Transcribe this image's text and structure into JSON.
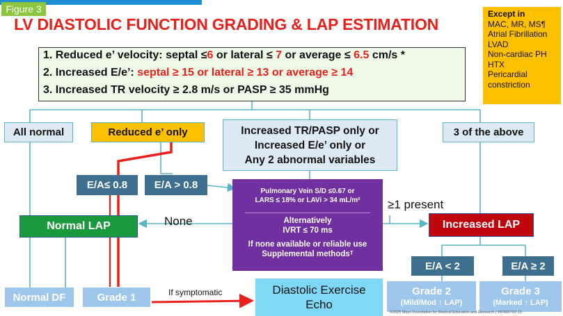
{
  "figure_label": "Figure 3",
  "title": "LV DIASTOLIC FUNCTION GRADING & LAP ESTIMATION",
  "exceptions": {
    "heading": "Except in",
    "items": [
      "MAC, MR, MS¶",
      "Atrial Fibrillation",
      "LVAD",
      "Non-cardiac PH",
      "HTX",
      "Pericardial",
      "constriction"
    ]
  },
  "criteria": {
    "c1": {
      "pre": "1. Reduced e’ velocity:  septal ≤",
      "v1": "6",
      "mid1": "  or lateral ≤ ",
      "v2": "7",
      "mid2": " or ",
      "mid3": "average ≤ ",
      "v3": "6.5",
      "post": " cm/s *"
    },
    "c2": {
      "pre": "2. Increased E/e’: ",
      "rest": "septal ≥ 15 or lateral ≥ 13 or average ≥ 14"
    },
    "c3": "3. Increased TR velocity ≥ 2.8 m/s or PASP ≥ 35 mmHg"
  },
  "branches": {
    "all_normal": "All normal",
    "reduced_e": "Reduced e’ only",
    "increased_tr": [
      "Increased TR/PASP only or",
      "Increased E/e’ only or",
      "Any 2 abnormal variables"
    ],
    "three_above": "3 of the above"
  },
  "ea_low": "E/A≤ 0.8",
  "ea_high": "E/A > 0.8",
  "purple": {
    "line1": "Pulmonary Vein S/D ≤0.67 or",
    "line2": "LARS ≤ 18% or LAVi > 34 mL/m²",
    "alt": "Alternatively",
    "ivrt": "IVRT  ≤ 70 ms",
    "none1": "If none available or reliable use",
    "none2": "Supplemental methodsᵀ"
  },
  "none_label": "None",
  "present_label": "≥1 present",
  "normal_lap": "Normal LAP",
  "increased_lap": "Increased LAP",
  "ea_lt2": "E/A <  2",
  "ea_ge2": "E/A ≥ 2",
  "normal_df": "Normal DF",
  "grade1": "Grade 1",
  "if_symptomatic": "If symptomatic",
  "exercise_echo": [
    "Diastolic Exercise",
    "Echo"
  ],
  "grade2": {
    "title": "Grade 2",
    "sub": "(Mild/Mod ↑ LAP)"
  },
  "grade3": {
    "title": "Grade 3",
    "sub": "(Marked ↑ LAP)"
  },
  "footer": "©2025 Mayo Foundation for Medical Education and Research  |  WF880702-15",
  "colors": {
    "teal_border": "#5ab4c6",
    "steel": "#3f6f8f",
    "green": "#1a9a3c",
    "red_box": "#c0070d",
    "purple": "#7030a0",
    "orange": "#ffc000",
    "light_blue": "#9fc7ec",
    "arrow_red": "#e8201c"
  }
}
